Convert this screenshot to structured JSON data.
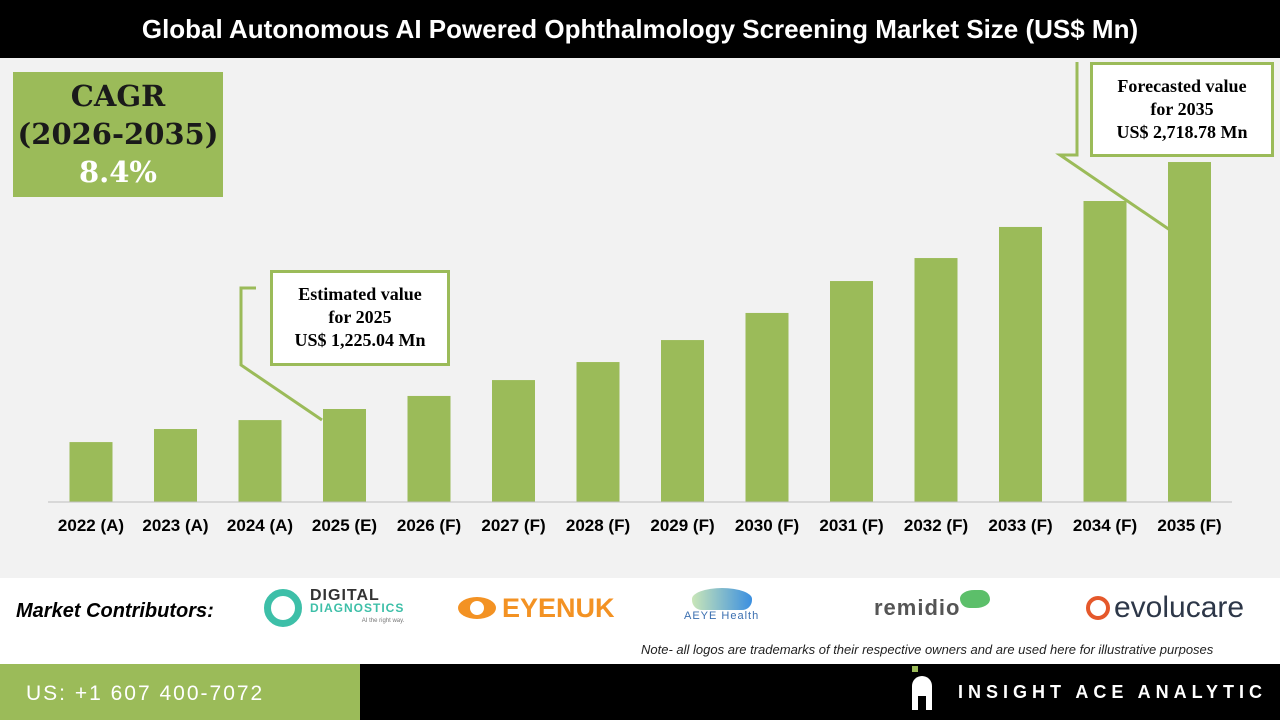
{
  "title": "Global Autonomous AI Powered Ophthalmology Screening Market Size (US$ Mn)",
  "cagr": {
    "label": "CAGR",
    "period": "(2026-2035)",
    "value": "8.4%"
  },
  "estimated": {
    "line1": "Estimated value",
    "line2": "for 2025",
    "line3": "US$ 1,225.04 Mn"
  },
  "forecast": {
    "line1": "Forecasted value",
    "line2": "for 2035",
    "line3": "US$ 2,718.78 Mn"
  },
  "chart_data": {
    "type": "bar",
    "title": "Global Autonomous AI Powered Ophthalmology Screening Market Size (US$ Mn)",
    "categories": [
      "2022 (A)",
      "2023 (A)",
      "2024 (A)",
      "2025 (E)",
      "2026 (F)",
      "2027 (F)",
      "2028 (F)",
      "2029 (F)",
      "2030 (F)",
      "2031 (F)",
      "2032 (F)",
      "2033 (F)",
      "2034 (F)",
      "2035 (F)"
    ],
    "values": [
      1025,
      1104,
      1158,
      1225.04,
      1304,
      1400,
      1509,
      1642,
      1806,
      1999,
      2138,
      2326,
      2483,
      2718.78
    ],
    "grid": false,
    "bar_color": "#9bbb59"
  },
  "contributors": {
    "label": "Market Contributors:",
    "logos": [
      {
        "name": "DIGITAL",
        "sub": "DIAGNOSTICS",
        "tag": "AI the right way."
      },
      {
        "name": "EYENUK"
      },
      {
        "name": "AEYE Health"
      },
      {
        "name": "remidio"
      },
      {
        "name": "evolucare"
      }
    ],
    "note": "Note- all logos are trademarks of their respective owners and are used here for illustrative purposes"
  },
  "footer": {
    "phone": "US: +1 607 400-7072",
    "brand": "INSIGHT ACE ANALYTIC"
  }
}
